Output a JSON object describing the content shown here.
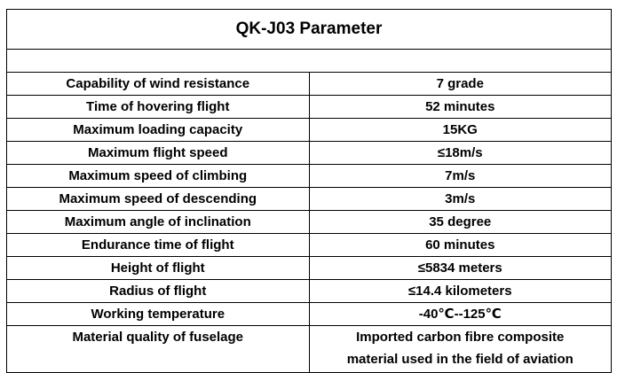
{
  "table": {
    "title": "QK-J03 Parameter",
    "rows": [
      {
        "label": "Capability of wind resistance",
        "value": "7 grade"
      },
      {
        "label": "Time of hovering flight",
        "value": "52 minutes"
      },
      {
        "label": "Maximum loading capacity",
        "value": "15KG"
      },
      {
        "label": "Maximum flight speed",
        "value": "≤18m/s"
      },
      {
        "label": "Maximum speed of climbing",
        "value": "7m/s"
      },
      {
        "label": "Maximum speed of descending",
        "value": "3m/s"
      },
      {
        "label": "Maximum angle of inclination",
        "value": "35 degree"
      },
      {
        "label": "Endurance time of flight",
        "value": "60 minutes"
      },
      {
        "label": "Height of flight",
        "value": "≤5834 meters"
      },
      {
        "label": "Radius of flight",
        "value": "≤14.4 kilometers"
      },
      {
        "label": "Working temperature",
        "value": "-40℃--125℃"
      },
      {
        "label": "Material quality of fuselage",
        "value_lines": [
          "Imported carbon fibre composite",
          "material used in the field of aviation"
        ]
      }
    ]
  }
}
